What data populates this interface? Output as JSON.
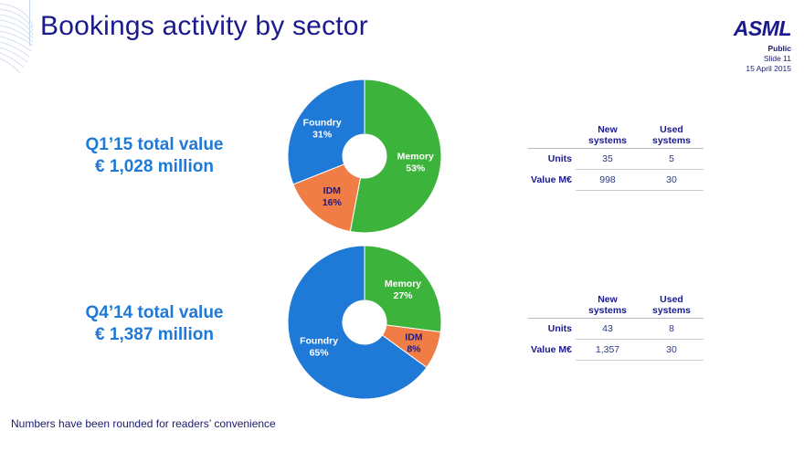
{
  "header": {
    "title": "Bookings activity by sector",
    "logo": "ASML",
    "classification": "Public",
    "slide": "Slide 11",
    "date": "15 April 2015"
  },
  "q1": {
    "total_title": "Q1’15 total value",
    "total_value": "€ 1,028 million",
    "table": {
      "headers": [
        [
          "New",
          "systems"
        ],
        [
          "Used",
          "systems"
        ]
      ],
      "rows": [
        {
          "label": "Units",
          "new": "35",
          "used": "5"
        },
        {
          "label": "Value M€",
          "new": "998",
          "used": "30"
        }
      ]
    }
  },
  "q4": {
    "total_title": "Q4’14 total value",
    "total_value": "€ 1,387 million",
    "table": {
      "headers": [
        [
          "New",
          "systems"
        ],
        [
          "Used",
          "systems"
        ]
      ],
      "rows": [
        {
          "label": "Units",
          "new": "43",
          "used": "8"
        },
        {
          "label": "Value M€",
          "new": "1,357",
          "used": "30"
        }
      ]
    }
  },
  "footnote": "Numbers have been rounded for readers’ convenience",
  "colors": {
    "memory": "#3cb43c",
    "idm": "#f07d46",
    "foundry": "#1e7ad6",
    "title": "#1a1a8c"
  },
  "chart_data": [
    {
      "type": "pie",
      "title": "Q1’15 total value",
      "categories": [
        "Memory",
        "IDM",
        "Foundry"
      ],
      "values": [
        53,
        16,
        31
      ],
      "labels": [
        "53%",
        "16%",
        "31%"
      ]
    },
    {
      "type": "pie",
      "title": "Q4’14 total value",
      "categories": [
        "Memory",
        "IDM",
        "Foundry"
      ],
      "values": [
        27,
        8,
        65
      ],
      "labels": [
        "27%",
        "8%",
        "65%"
      ]
    }
  ]
}
